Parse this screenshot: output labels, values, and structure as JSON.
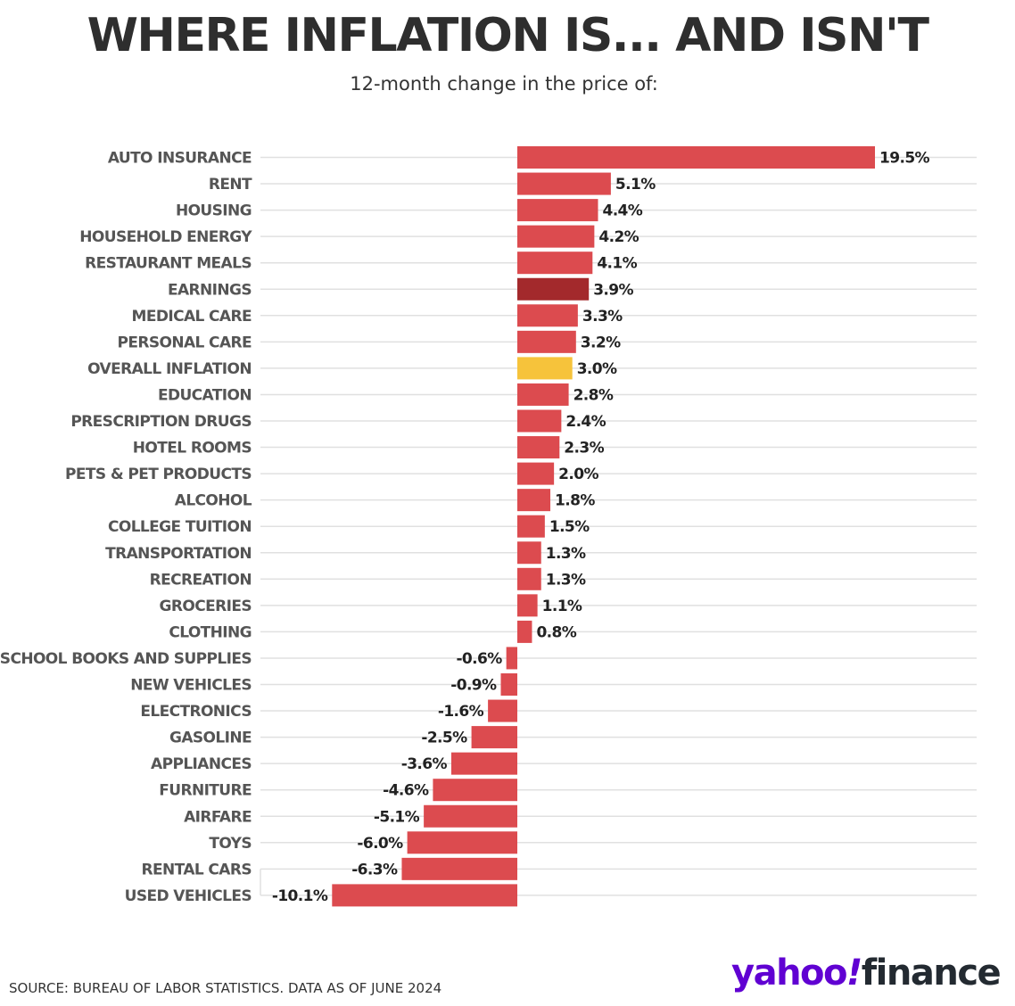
{
  "header": {
    "title": "WHERE INFLATION IS... AND ISN'T",
    "subtitle": "12-month change in the price of:"
  },
  "footer": {
    "source": "SOURCE: BUREAU OF LABOR STATISTICS. DATA AS OF JUNE 2024",
    "logo_yahoo": "yahoo",
    "logo_bang": "!",
    "logo_finance": "finance"
  },
  "colors": {
    "bar": "#dc4b4f",
    "highlight_earnings": "#a3292c",
    "highlight_overall": "#f6c33b",
    "gridline": "#e0e0e0",
    "logo_purple": "#6001d2"
  },
  "chart_data": {
    "type": "bar",
    "orientation": "horizontal",
    "title": "WHERE INFLATION IS... AND ISN'T",
    "subtitle": "12-month change in the price of:",
    "unit": "%",
    "grid": true,
    "categories": [
      "AUTO INSURANCE",
      "RENT",
      "HOUSING",
      "HOUSEHOLD ENERGY",
      "RESTAURANT MEALS",
      "EARNINGS",
      "MEDICAL CARE",
      "PERSONAL CARE",
      "OVERALL INFLATION",
      "EDUCATION",
      "PRESCRIPTION DRUGS",
      "HOTEL ROOMS",
      "PETS & PET PRODUCTS",
      "ALCOHOL",
      "COLLEGE TUITION",
      "TRANSPORTATION",
      "RECREATION",
      "GROCERIES",
      "CLOTHING",
      "SCHOOL BOOKS AND SUPPLIES",
      "NEW VEHICLES",
      "ELECTRONICS",
      "GASOLINE",
      "APPLIANCES",
      "FURNITURE",
      "AIRFARE",
      "TOYS",
      "RENTAL CARS",
      "USED VEHICLES"
    ],
    "values": [
      19.5,
      5.1,
      4.4,
      4.2,
      4.1,
      3.9,
      3.3,
      3.2,
      3.0,
      2.8,
      2.4,
      2.3,
      2.0,
      1.8,
      1.5,
      1.3,
      1.3,
      1.1,
      0.8,
      -0.6,
      -0.9,
      -1.6,
      -2.5,
      -3.6,
      -4.6,
      -5.1,
      -6.0,
      -6.3,
      -10.1
    ],
    "value_labels": [
      "19.5%",
      "5.1%",
      "4.4%",
      "4.2%",
      "4.1%",
      "3.9%",
      "3.3%",
      "3.2%",
      "3.0%",
      "2.8%",
      "2.4%",
      "2.3%",
      "2.0%",
      "1.8%",
      "1.5%",
      "1.3%",
      "1.3%",
      "1.1%",
      "0.8%",
      "-0.6%",
      "-0.9%",
      "-1.6%",
      "-2.5%",
      "-3.6%",
      "-4.6%",
      "-5.1%",
      "-6.0%",
      "-6.3%",
      "-10.1%"
    ],
    "highlights": {
      "EARNINGS": "#a3292c",
      "OVERALL INFLATION": "#f6c33b"
    },
    "xlim": [
      -10.1,
      19.5
    ]
  }
}
